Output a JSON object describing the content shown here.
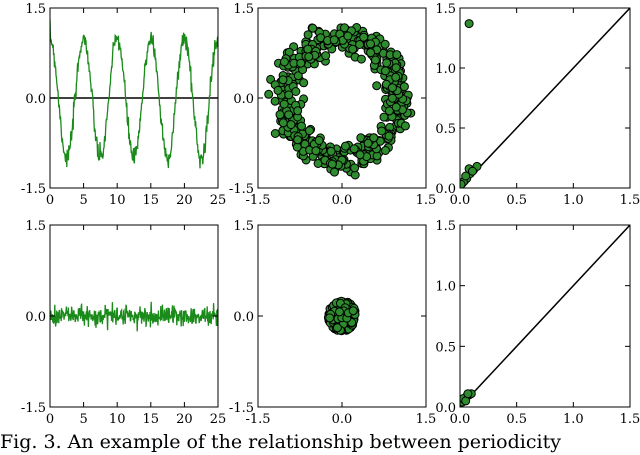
{
  "caption": "Fig. 3. An example of the relationship between periodicity",
  "colors": {
    "series": "#1a8a1a",
    "marker_fill": "#2e8b2e",
    "marker_edge": "#000000",
    "axis": "#000000"
  },
  "chart_data": [
    {
      "id": "signal-periodic",
      "type": "line",
      "xlim": [
        0,
        25
      ],
      "ylim": [
        -1.5,
        1.5
      ],
      "xticks": [
        "0",
        "5",
        "10",
        "15",
        "20",
        "25"
      ],
      "yticks": [
        "-1.5",
        "0.0",
        "1.5"
      ],
      "hline": 0.0,
      "series": [
        {
          "shape": "noisy sinusoid",
          "period": 5,
          "amplitude": 1.0,
          "noise": 0.1
        }
      ]
    },
    {
      "id": "embedding-periodic",
      "type": "scatter",
      "xlim": [
        -1.5,
        1.5
      ],
      "ylim": [
        -1.5,
        1.5
      ],
      "xticks": [
        "-1.5",
        "0.0",
        "1.5"
      ],
      "yticks": [
        "-1.5",
        "0.0",
        "1.5"
      ],
      "series": [
        {
          "shape": "ring",
          "center": [
            0,
            0
          ],
          "radius": 1.0,
          "noise": 0.12
        }
      ]
    },
    {
      "id": "persistence-periodic",
      "type": "scatter",
      "xlim": [
        0,
        1.5
      ],
      "ylim": [
        0,
        1.5
      ],
      "xticks": [
        "0.0",
        "0.5",
        "1.0",
        "1.5"
      ],
      "yticks": [
        "0.0",
        "0.5",
        "1.0",
        "1.5"
      ],
      "diagonal": true,
      "series": [
        {
          "points": [
            [
              0.08,
              1.37
            ],
            [
              0.02,
              0.04
            ],
            [
              0.04,
              0.06
            ],
            [
              0.06,
              0.08
            ],
            [
              0.09,
              0.12
            ],
            [
              0.12,
              0.15
            ],
            [
              0.15,
              0.18
            ],
            [
              0.03,
              0.05
            ],
            [
              0.05,
              0.1
            ],
            [
              0.08,
              0.16
            ],
            [
              0.11,
              0.14
            ],
            [
              0.01,
              0.03
            ]
          ]
        }
      ]
    },
    {
      "id": "signal-noise",
      "type": "line",
      "xlim": [
        0,
        25
      ],
      "ylim": [
        -1.5,
        1.5
      ],
      "xticks": [
        "0",
        "5",
        "10",
        "15",
        "20",
        "25"
      ],
      "yticks": [
        "-1.5",
        "0.0",
        "1.5"
      ],
      "series": [
        {
          "shape": "white noise",
          "mean": 0.0,
          "amplitude": 0.08
        }
      ]
    },
    {
      "id": "embedding-noise",
      "type": "scatter",
      "xlim": [
        -1.5,
        1.5
      ],
      "ylim": [
        -1.5,
        1.5
      ],
      "xticks": [
        "-1.5",
        "0.0",
        "1.5"
      ],
      "yticks": [
        "-1.5",
        "0.0",
        "1.5"
      ],
      "series": [
        {
          "shape": "blob",
          "center": [
            0,
            0
          ],
          "radius": 0.25
        }
      ]
    },
    {
      "id": "persistence-noise",
      "type": "scatter",
      "xlim": [
        0,
        1.5
      ],
      "ylim": [
        0,
        1.5
      ],
      "xticks": [
        "0.0",
        "0.5",
        "1.0",
        "1.5"
      ],
      "yticks": [
        "0.0",
        "0.5",
        "1.0",
        "1.5"
      ],
      "diagonal": true,
      "series": [
        {
          "points": [
            [
              0.02,
              0.04
            ],
            [
              0.04,
              0.06
            ],
            [
              0.06,
              0.09
            ],
            [
              0.08,
              0.1
            ],
            [
              0.1,
              0.11
            ],
            [
              0.03,
              0.07
            ],
            [
              0.05,
              0.05
            ],
            [
              0.07,
              0.11
            ]
          ]
        }
      ]
    }
  ]
}
